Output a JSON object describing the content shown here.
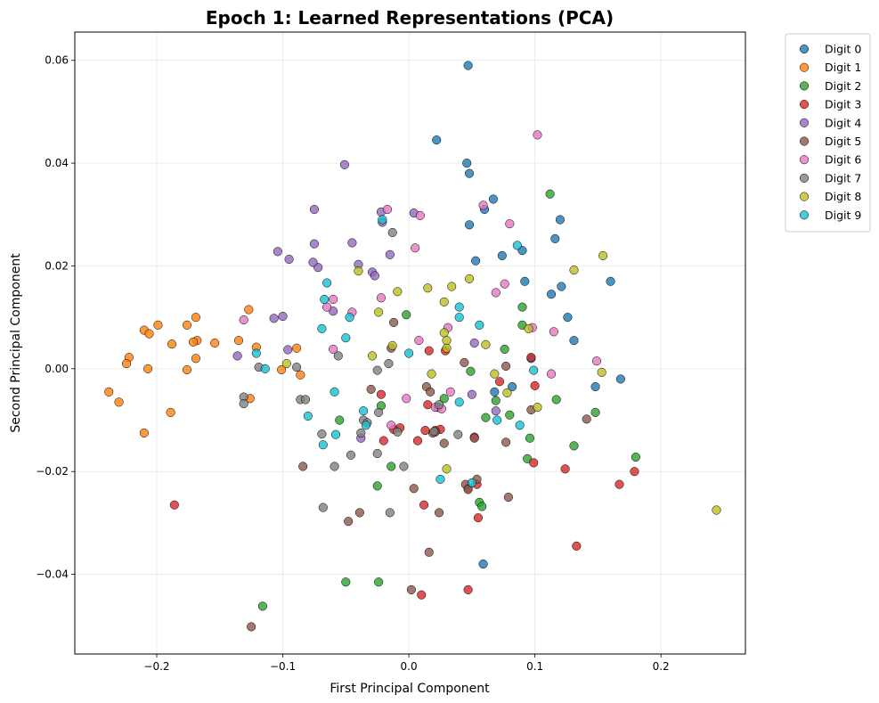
{
  "chart_data": {
    "type": "scatter",
    "title": "Epoch 1: Learned Representations (PCA)",
    "xlabel": "First Principal Component",
    "ylabel": "Second Principal Component",
    "xlim": [
      -0.265,
      0.267
    ],
    "ylim": [
      -0.0555,
      0.0655
    ],
    "xticks": [
      -0.2,
      -0.1,
      0.0,
      0.1,
      0.2
    ],
    "xtick_labels": [
      "−0.2",
      "−0.1",
      "0.0",
      "0.1",
      "0.2"
    ],
    "yticks": [
      -0.04,
      -0.02,
      0.0,
      0.02,
      0.04,
      0.06
    ],
    "ytick_labels": [
      "−0.04",
      "−0.02",
      "0.00",
      "0.02",
      "0.04",
      "0.06"
    ],
    "grid": true,
    "legend_position": "outside-top-right",
    "series": [
      {
        "name": "Digit 0",
        "color": "#1f77b4",
        "points": [
          [
            0.047,
            0.059
          ],
          [
            0.022,
            0.0445
          ],
          [
            0.046,
            0.04
          ],
          [
            0.048,
            0.038
          ],
          [
            0.067,
            0.033
          ],
          [
            0.06,
            0.031
          ],
          [
            0.048,
            0.028
          ],
          [
            0.12,
            0.029
          ],
          [
            0.116,
            0.0253
          ],
          [
            0.09,
            0.023
          ],
          [
            0.074,
            0.022
          ],
          [
            0.053,
            0.021
          ],
          [
            0.16,
            0.017
          ],
          [
            0.092,
            0.017
          ],
          [
            0.121,
            0.016
          ],
          [
            0.113,
            0.0145
          ],
          [
            0.126,
            0.01
          ],
          [
            0.131,
            0.0055
          ],
          [
            0.097,
            0.002
          ],
          [
            0.082,
            -0.0035
          ],
          [
            0.148,
            -0.0035
          ],
          [
            0.168,
            -0.002
          ],
          [
            0.068,
            -0.0045
          ],
          [
            0.059,
            -0.038
          ]
        ]
      },
      {
        "name": "Digit 1",
        "color": "#ff7f0e",
        "points": [
          [
            -0.238,
            -0.0045
          ],
          [
            -0.23,
            -0.0065
          ],
          [
            -0.222,
            0.0022
          ],
          [
            -0.224,
            0.001
          ],
          [
            -0.21,
            0.0075
          ],
          [
            -0.206,
            0.0068
          ],
          [
            -0.199,
            0.0085
          ],
          [
            -0.207,
            0.0
          ],
          [
            -0.188,
            0.0048
          ],
          [
            -0.176,
            0.0085
          ],
          [
            -0.169,
            0.01
          ],
          [
            -0.168,
            0.0055
          ],
          [
            -0.171,
            0.0052
          ],
          [
            -0.154,
            0.005
          ],
          [
            -0.169,
            0.002
          ],
          [
            -0.176,
            -0.0002
          ],
          [
            -0.21,
            -0.0125
          ],
          [
            -0.189,
            -0.0085
          ],
          [
            -0.135,
            0.0055
          ],
          [
            -0.127,
            0.0115
          ],
          [
            -0.121,
            0.0042
          ],
          [
            -0.089,
            0.004
          ],
          [
            -0.101,
            -0.0002
          ],
          [
            -0.086,
            -0.0012
          ],
          [
            -0.126,
            -0.0058
          ]
        ]
      },
      {
        "name": "Digit 2",
        "color": "#2ca02c",
        "points": [
          [
            0.112,
            0.034
          ],
          [
            -0.002,
            0.0105
          ],
          [
            0.09,
            0.012
          ],
          [
            0.09,
            0.0085
          ],
          [
            0.076,
            0.0038
          ],
          [
            0.049,
            -0.0005
          ],
          [
            0.028,
            -0.0058
          ],
          [
            0.069,
            -0.0062
          ],
          [
            0.08,
            -0.009
          ],
          [
            0.061,
            -0.0095
          ],
          [
            -0.055,
            -0.01
          ],
          [
            0.117,
            -0.006
          ],
          [
            0.148,
            -0.0085
          ],
          [
            0.096,
            -0.0135
          ],
          [
            0.131,
            -0.015
          ],
          [
            -0.014,
            -0.019
          ],
          [
            0.094,
            -0.0175
          ],
          [
            0.18,
            -0.0172
          ],
          [
            -0.025,
            -0.0228
          ],
          [
            0.056,
            -0.026
          ],
          [
            0.058,
            -0.0268
          ],
          [
            -0.05,
            -0.0415
          ],
          [
            -0.024,
            -0.0415
          ],
          [
            -0.116,
            -0.0462
          ],
          [
            -0.022,
            -0.0072
          ]
        ]
      },
      {
        "name": "Digit 3",
        "color": "#d62728",
        "points": [
          [
            0.016,
            0.0035
          ],
          [
            0.029,
            0.0035
          ],
          [
            0.097,
            0.0022
          ],
          [
            0.072,
            -0.0025
          ],
          [
            0.1,
            -0.0033
          ],
          [
            -0.022,
            -0.005
          ],
          [
            0.015,
            -0.007
          ],
          [
            -0.02,
            -0.014
          ],
          [
            -0.007,
            -0.0115
          ],
          [
            -0.012,
            -0.0118
          ],
          [
            0.007,
            -0.014
          ],
          [
            0.013,
            -0.012
          ],
          [
            0.021,
            -0.012
          ],
          [
            0.025,
            -0.0118
          ],
          [
            0.052,
            -0.0133
          ],
          [
            0.047,
            -0.0232
          ],
          [
            0.054,
            -0.0225
          ],
          [
            0.124,
            -0.0195
          ],
          [
            0.099,
            -0.0183
          ],
          [
            0.179,
            -0.02
          ],
          [
            0.167,
            -0.0225
          ],
          [
            0.012,
            -0.0265
          ],
          [
            0.055,
            -0.029
          ],
          [
            0.133,
            -0.0345
          ],
          [
            0.01,
            -0.044
          ],
          [
            0.047,
            -0.043
          ],
          [
            -0.186,
            -0.0265
          ]
        ]
      },
      {
        "name": "Digit 4",
        "color": "#9467bd",
        "points": [
          [
            -0.051,
            0.0397
          ],
          [
            -0.075,
            0.031
          ],
          [
            -0.022,
            0.0305
          ],
          [
            -0.021,
            0.0285
          ],
          [
            0.004,
            0.0303
          ],
          [
            -0.075,
            0.0243
          ],
          [
            -0.104,
            0.0228
          ],
          [
            -0.095,
            0.0213
          ],
          [
            -0.045,
            0.0245
          ],
          [
            -0.015,
            0.0222
          ],
          [
            -0.04,
            0.0203
          ],
          [
            -0.072,
            0.0197
          ],
          [
            -0.076,
            0.0207
          ],
          [
            -0.029,
            0.0188
          ],
          [
            -0.027,
            0.0181
          ],
          [
            -0.1,
            0.0102
          ],
          [
            -0.107,
            0.0098
          ],
          [
            -0.06,
            0.0112
          ],
          [
            -0.136,
            0.0025
          ],
          [
            -0.096,
            0.0037
          ],
          [
            0.052,
            0.005
          ],
          [
            0.05,
            -0.005
          ],
          [
            0.069,
            -0.0082
          ],
          [
            -0.038,
            -0.0135
          ],
          [
            0.023,
            -0.0075
          ]
        ]
      },
      {
        "name": "Digit 5",
        "color": "#8c564b",
        "points": [
          [
            -0.012,
            0.009
          ],
          [
            -0.014,
            0.004
          ],
          [
            0.044,
            0.0012
          ],
          [
            0.077,
            0.0005
          ],
          [
            0.014,
            -0.0035
          ],
          [
            -0.03,
            -0.004
          ],
          [
            0.017,
            -0.0045
          ],
          [
            0.097,
            -0.008
          ],
          [
            0.141,
            -0.0098
          ],
          [
            0.052,
            -0.0135
          ],
          [
            0.077,
            -0.0143
          ],
          [
            0.021,
            -0.0123
          ],
          [
            0.019,
            -0.0125
          ],
          [
            0.028,
            -0.0145
          ],
          [
            0.004,
            -0.0233
          ],
          [
            0.045,
            -0.0225
          ],
          [
            0.047,
            -0.0235
          ],
          [
            0.054,
            -0.0215
          ],
          [
            0.079,
            -0.025
          ],
          [
            0.024,
            -0.028
          ],
          [
            -0.039,
            -0.028
          ],
          [
            -0.048,
            -0.0297
          ],
          [
            -0.084,
            -0.019
          ],
          [
            0.016,
            -0.0357
          ],
          [
            0.002,
            -0.043
          ],
          [
            -0.125,
            -0.0502
          ]
        ]
      },
      {
        "name": "Digit 6",
        "color": "#e377c2",
        "points": [
          [
            0.102,
            0.0455
          ],
          [
            -0.017,
            0.031
          ],
          [
            0.009,
            0.0298
          ],
          [
            0.059,
            0.0318
          ],
          [
            0.08,
            0.0282
          ],
          [
            0.005,
            0.0235
          ],
          [
            0.076,
            0.0165
          ],
          [
            0.069,
            0.0148
          ],
          [
            -0.022,
            0.0138
          ],
          [
            -0.06,
            0.0135
          ],
          [
            -0.065,
            0.012
          ],
          [
            -0.045,
            0.011
          ],
          [
            -0.131,
            0.0095
          ],
          [
            0.098,
            0.008
          ],
          [
            0.115,
            0.0072
          ],
          [
            0.031,
            0.008
          ],
          [
            0.008,
            0.0055
          ],
          [
            -0.06,
            0.0038
          ],
          [
            0.149,
            0.0015
          ],
          [
            0.113,
            -0.001
          ],
          [
            -0.002,
            -0.0058
          ],
          [
            0.033,
            -0.0045
          ],
          [
            -0.014,
            -0.011
          ],
          [
            0.021,
            -0.0075
          ],
          [
            0.026,
            -0.0078
          ]
        ]
      },
      {
        "name": "Digit 7",
        "color": "#7f7f7f",
        "points": [
          [
            -0.013,
            0.0265
          ],
          [
            -0.056,
            0.0025
          ],
          [
            -0.119,
            0.0003
          ],
          [
            -0.089,
            0.0003
          ],
          [
            -0.131,
            -0.0055
          ],
          [
            -0.131,
            -0.0068
          ],
          [
            -0.086,
            -0.006
          ],
          [
            -0.082,
            -0.006
          ],
          [
            -0.016,
            0.001
          ],
          [
            -0.025,
            -0.0003
          ],
          [
            -0.024,
            -0.0085
          ],
          [
            -0.036,
            -0.01
          ],
          [
            -0.033,
            -0.0105
          ],
          [
            -0.069,
            -0.0127
          ],
          [
            -0.038,
            -0.0125
          ],
          [
            -0.009,
            -0.0123
          ],
          [
            -0.046,
            -0.0168
          ],
          [
            -0.025,
            -0.0165
          ],
          [
            -0.059,
            -0.019
          ],
          [
            -0.004,
            -0.019
          ],
          [
            0.039,
            -0.0128
          ],
          [
            -0.068,
            -0.027
          ],
          [
            -0.015,
            -0.028
          ],
          [
            0.02,
            -0.0122
          ],
          [
            0.024,
            -0.007
          ]
        ]
      },
      {
        "name": "Digit 8",
        "color": "#bcbd22",
        "points": [
          [
            0.154,
            0.022
          ],
          [
            0.131,
            0.0192
          ],
          [
            -0.04,
            0.019
          ],
          [
            0.048,
            0.0175
          ],
          [
            0.015,
            0.0157
          ],
          [
            0.034,
            0.016
          ],
          [
            -0.009,
            0.015
          ],
          [
            0.028,
            0.013
          ],
          [
            -0.024,
            0.011
          ],
          [
            0.028,
            0.007
          ],
          [
            0.03,
            0.0055
          ],
          [
            0.03,
            0.004
          ],
          [
            -0.013,
            0.0045
          ],
          [
            0.061,
            0.0047
          ],
          [
            0.095,
            0.0078
          ],
          [
            -0.097,
            0.001
          ],
          [
            -0.029,
            0.0025
          ],
          [
            0.018,
            -0.001
          ],
          [
            0.068,
            -0.001
          ],
          [
            0.153,
            -0.0007
          ],
          [
            0.078,
            -0.0047
          ],
          [
            0.102,
            -0.0075
          ],
          [
            0.03,
            -0.0195
          ],
          [
            0.244,
            -0.0275
          ]
        ]
      },
      {
        "name": "Digit 9",
        "color": "#17becf",
        "points": [
          [
            -0.021,
            0.029
          ],
          [
            0.086,
            0.024
          ],
          [
            -0.065,
            0.0167
          ],
          [
            -0.047,
            0.01
          ],
          [
            0.04,
            0.012
          ],
          [
            -0.067,
            0.0135
          ],
          [
            -0.069,
            0.0078
          ],
          [
            0.04,
            0.01
          ],
          [
            0.056,
            0.0085
          ],
          [
            -0.05,
            0.006
          ],
          [
            -0.121,
            0.003
          ],
          [
            -0.114,
            0.0
          ],
          [
            0.0,
            0.003
          ],
          [
            0.099,
            -0.0003
          ],
          [
            -0.059,
            -0.0045
          ],
          [
            -0.08,
            -0.0092
          ],
          [
            -0.036,
            -0.0082
          ],
          [
            0.04,
            -0.0065
          ],
          [
            0.07,
            -0.01
          ],
          [
            0.088,
            -0.011
          ],
          [
            -0.034,
            -0.011
          ],
          [
            -0.068,
            -0.0148
          ],
          [
            -0.058,
            -0.0128
          ],
          [
            0.025,
            -0.0215
          ],
          [
            0.05,
            -0.0222
          ]
        ]
      }
    ]
  }
}
